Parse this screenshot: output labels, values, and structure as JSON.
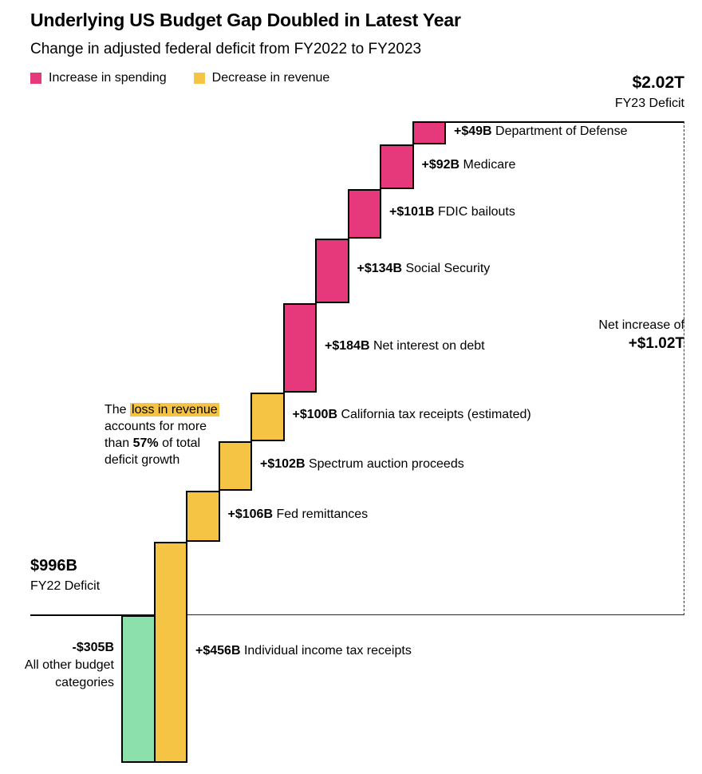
{
  "page": {
    "title": "Underlying US Budget Gap Doubled in Latest Year",
    "subtitle": "Change in adjusted federal deficit from FY2022 to FY2023"
  },
  "chart_data": {
    "type": "bar",
    "subtype": "waterfall",
    "title": "Underlying US Budget Gap Doubled in Latest Year",
    "unit": "USD billions",
    "legend": [
      {
        "label": "Increase in spending",
        "category": "spending",
        "color": "#e5397b"
      },
      {
        "label": "Decrease in revenue",
        "category": "revenue",
        "color": "#f5c444"
      }
    ],
    "colors": {
      "spending": "#e5397b",
      "revenue": "#f5c444",
      "other": "#8ce0ac"
    },
    "start": {
      "label": "FY22 Deficit",
      "display": "$996B",
      "value": 996
    },
    "end": {
      "label": "FY23 Deficit",
      "display": "$2.02T",
      "value": 2016
    },
    "net_change": {
      "label": "Net increase of",
      "display": "+$1.02T",
      "value": 1020
    },
    "steps": [
      {
        "name": "All other budget categories",
        "display": "-$305B",
        "value": -305,
        "category": "other"
      },
      {
        "name": "Individual income tax receipts",
        "display": "+$456B",
        "value": 456,
        "category": "revenue"
      },
      {
        "name": "Fed remittances",
        "display": "+$106B",
        "value": 106,
        "category": "revenue"
      },
      {
        "name": "Spectrum auction proceeds",
        "display": "+$102B",
        "value": 102,
        "category": "revenue"
      },
      {
        "name": "California tax receipts (estimated)",
        "display": "+$100B",
        "value": 100,
        "category": "revenue"
      },
      {
        "name": "Net interest on debt",
        "display": "+$184B",
        "value": 184,
        "category": "spending"
      },
      {
        "name": "Social Security",
        "display": "+$134B",
        "value": 134,
        "category": "spending"
      },
      {
        "name": "FDIC bailouts",
        "display": "+$101B",
        "value": 101,
        "category": "spending"
      },
      {
        "name": "Medicare",
        "display": "+$92B",
        "value": 92,
        "category": "spending"
      },
      {
        "name": "Department of Defense",
        "display": "+$49B",
        "value": 49,
        "category": "spending"
      }
    ]
  },
  "annotations": {
    "fy23": {
      "value": "$2.02T",
      "label": "FY23 Deficit"
    },
    "fy22": {
      "value": "$996B",
      "label": "FY22 Deficit"
    },
    "net_increase": {
      "label": "Net increase of",
      "value": "+$1.02T"
    },
    "other_categories": {
      "value": "-$305B",
      "label": "All other budget categories"
    },
    "revenue_note": {
      "prefix": "The ",
      "highlight": "loss in revenue",
      "middle": " accounts for more than ",
      "bold": "57%",
      "suffix": " of total deficit growth",
      "highlight_color": "#f5c444"
    }
  }
}
